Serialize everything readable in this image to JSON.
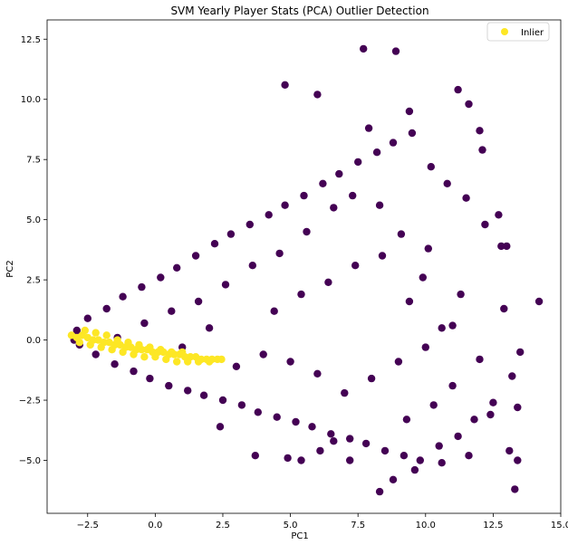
{
  "chart_data": {
    "type": "scatter",
    "title": "SVM Yearly Player Stats (PCA) Outlier Detection",
    "xlabel": "PC1",
    "ylabel": "PC2",
    "xlim": [
      -4.0,
      15.0
    ],
    "ylim": [
      -7.2,
      13.3
    ],
    "x_ticks": [
      -2.5,
      0.0,
      2.5,
      5.0,
      7.5,
      10.0,
      12.5,
      15.0
    ],
    "x_tick_labels": [
      "−2.5",
      "0.0",
      "2.5",
      "5.0",
      "7.5",
      "10.0",
      "12.5",
      "15.0"
    ],
    "y_ticks": [
      -5.0,
      -2.5,
      0.0,
      2.5,
      5.0,
      7.5,
      10.0,
      12.5
    ],
    "y_tick_labels": [
      "−5.0",
      "−2.5",
      "0.0",
      "2.5",
      "5.0",
      "7.5",
      "10.0",
      "12.5"
    ],
    "grid": false,
    "legend_position": "top-right",
    "colors": {
      "outlier": "#440154",
      "inlier": "#fde725"
    },
    "series": [
      {
        "name": "",
        "class": "outlier",
        "values": [
          [
            -2.9,
            0.4
          ],
          [
            -2.5,
            0.9
          ],
          [
            -2.2,
            -0.6
          ],
          [
            -1.8,
            1.3
          ],
          [
            -1.5,
            -1.0
          ],
          [
            -1.2,
            1.8
          ],
          [
            -0.8,
            -1.3
          ],
          [
            -0.5,
            2.2
          ],
          [
            -0.2,
            -1.6
          ],
          [
            0.2,
            2.6
          ],
          [
            0.5,
            -1.9
          ],
          [
            0.8,
            3.0
          ],
          [
            1.2,
            -2.1
          ],
          [
            1.5,
            3.5
          ],
          [
            1.8,
            -2.3
          ],
          [
            2.2,
            4.0
          ],
          [
            2.5,
            -2.5
          ],
          [
            2.8,
            4.4
          ],
          [
            3.2,
            -2.7
          ],
          [
            3.5,
            4.8
          ],
          [
            3.8,
            -3.0
          ],
          [
            4.2,
            5.2
          ],
          [
            4.5,
            -3.2
          ],
          [
            4.8,
            5.6
          ],
          [
            5.2,
            -3.4
          ],
          [
            5.5,
            6.0
          ],
          [
            5.8,
            -3.6
          ],
          [
            6.2,
            6.5
          ],
          [
            6.5,
            -3.9
          ],
          [
            6.8,
            6.9
          ],
          [
            7.2,
            -4.1
          ],
          [
            7.5,
            7.4
          ],
          [
            7.8,
            -4.3
          ],
          [
            8.2,
            7.8
          ],
          [
            8.5,
            -4.6
          ],
          [
            8.8,
            8.2
          ],
          [
            9.2,
            -4.8
          ],
          [
            9.5,
            8.6
          ],
          [
            9.8,
            -5.0
          ],
          [
            10.2,
            7.2
          ],
          [
            10.5,
            -4.4
          ],
          [
            10.8,
            6.5
          ],
          [
            11.2,
            -4.0
          ],
          [
            11.5,
            5.9
          ],
          [
            11.8,
            -3.3
          ],
          [
            12.2,
            4.8
          ],
          [
            12.5,
            -2.6
          ],
          [
            12.8,
            3.9
          ],
          [
            13.2,
            -1.5
          ],
          [
            13.5,
            -0.5
          ],
          [
            14.2,
            1.6
          ],
          [
            13.3,
            -6.2
          ],
          [
            13.4,
            -2.8
          ],
          [
            8.3,
            -6.3
          ],
          [
            7.7,
            12.1
          ],
          [
            8.9,
            12.0
          ],
          [
            11.2,
            10.4
          ],
          [
            11.6,
            9.8
          ],
          [
            4.8,
            10.6
          ],
          [
            6.0,
            10.2
          ],
          [
            7.9,
            8.8
          ],
          [
            9.4,
            9.5
          ],
          [
            12.0,
            8.7
          ],
          [
            12.1,
            7.9
          ],
          [
            12.7,
            5.2
          ],
          [
            13.0,
            3.9
          ],
          [
            12.9,
            1.3
          ],
          [
            12.4,
            -3.1
          ],
          [
            13.1,
            -4.6
          ],
          [
            13.4,
            -5.0
          ],
          [
            4.9,
            -4.9
          ],
          [
            7.2,
            -5.0
          ],
          [
            8.8,
            -5.8
          ],
          [
            9.6,
            -5.4
          ],
          [
            10.6,
            -5.1
          ],
          [
            11.6,
            -4.8
          ],
          [
            3.7,
            -4.8
          ],
          [
            2.4,
            -3.6
          ],
          [
            6.1,
            -4.6
          ],
          [
            5.4,
            -5.0
          ],
          [
            6.6,
            -4.2
          ],
          [
            9.3,
            -3.3
          ],
          [
            10.3,
            -2.7
          ],
          [
            11.0,
            -1.9
          ],
          [
            10.6,
            0.5
          ],
          [
            11.3,
            1.9
          ],
          [
            9.9,
            2.6
          ],
          [
            10.1,
            3.8
          ],
          [
            9.1,
            4.4
          ],
          [
            8.3,
            5.6
          ],
          [
            7.3,
            6.0
          ],
          [
            6.6,
            5.5
          ],
          [
            5.6,
            4.5
          ],
          [
            4.6,
            3.6
          ],
          [
            3.6,
            3.1
          ],
          [
            2.6,
            2.3
          ],
          [
            1.6,
            1.6
          ],
          [
            0.6,
            1.2
          ],
          [
            -0.4,
            0.7
          ],
          [
            -1.4,
            0.1
          ],
          [
            7.0,
            -2.2
          ],
          [
            8.0,
            -1.6
          ],
          [
            9.0,
            -0.9
          ],
          [
            10.0,
            -0.3
          ],
          [
            11.0,
            0.6
          ],
          [
            12.0,
            -0.8
          ],
          [
            3.0,
            -1.1
          ],
          [
            4.0,
            -0.6
          ],
          [
            5.0,
            -0.9
          ],
          [
            6.0,
            -1.4
          ],
          [
            4.4,
            1.2
          ],
          [
            5.4,
            1.9
          ],
          [
            6.4,
            2.4
          ],
          [
            7.4,
            3.1
          ],
          [
            8.4,
            3.5
          ],
          [
            9.4,
            1.6
          ],
          [
            2.0,
            0.5
          ],
          [
            1.0,
            -0.3
          ],
          [
            -3.0,
            0.0
          ],
          [
            -2.8,
            -0.2
          ]
        ]
      },
      {
        "name": "Inlier",
        "class": "inlier",
        "values": [
          [
            -3.1,
            0.2
          ],
          [
            -2.9,
            0.1
          ],
          [
            -2.7,
            0.2
          ],
          [
            -2.5,
            0.1
          ],
          [
            -2.3,
            0.0
          ],
          [
            -2.1,
            0.0
          ],
          [
            -1.9,
            -0.1
          ],
          [
            -1.7,
            -0.1
          ],
          [
            -1.5,
            -0.2
          ],
          [
            -1.3,
            -0.2
          ],
          [
            -1.1,
            -0.3
          ],
          [
            -0.9,
            -0.3
          ],
          [
            -0.7,
            -0.4
          ],
          [
            -0.5,
            -0.4
          ],
          [
            -0.3,
            -0.4
          ],
          [
            -0.1,
            -0.5
          ],
          [
            0.1,
            -0.5
          ],
          [
            0.3,
            -0.5
          ],
          [
            0.5,
            -0.6
          ],
          [
            0.7,
            -0.6
          ],
          [
            0.9,
            -0.6
          ],
          [
            1.1,
            -0.7
          ],
          [
            1.3,
            -0.7
          ],
          [
            1.5,
            -0.7
          ],
          [
            1.7,
            -0.8
          ],
          [
            1.9,
            -0.8
          ],
          [
            2.1,
            -0.8
          ],
          [
            2.3,
            -0.8
          ],
          [
            2.45,
            -0.8
          ],
          [
            -2.6,
            0.4
          ],
          [
            -2.2,
            0.3
          ],
          [
            -1.8,
            0.2
          ],
          [
            -1.4,
            0.0
          ],
          [
            -1.0,
            -0.1
          ],
          [
            -0.6,
            -0.2
          ],
          [
            -0.2,
            -0.3
          ],
          [
            0.2,
            -0.4
          ],
          [
            0.6,
            -0.5
          ],
          [
            1.0,
            -0.5
          ],
          [
            -2.8,
            -0.1
          ],
          [
            -2.4,
            -0.2
          ],
          [
            -2.0,
            -0.3
          ],
          [
            -1.6,
            -0.4
          ],
          [
            -1.2,
            -0.5
          ],
          [
            -0.8,
            -0.6
          ],
          [
            -0.4,
            -0.7
          ],
          [
            0.0,
            -0.7
          ],
          [
            0.4,
            -0.8
          ],
          [
            0.8,
            -0.9
          ],
          [
            1.2,
            -0.9
          ],
          [
            1.6,
            -0.9
          ],
          [
            2.0,
            -0.9
          ]
        ]
      }
    ]
  }
}
